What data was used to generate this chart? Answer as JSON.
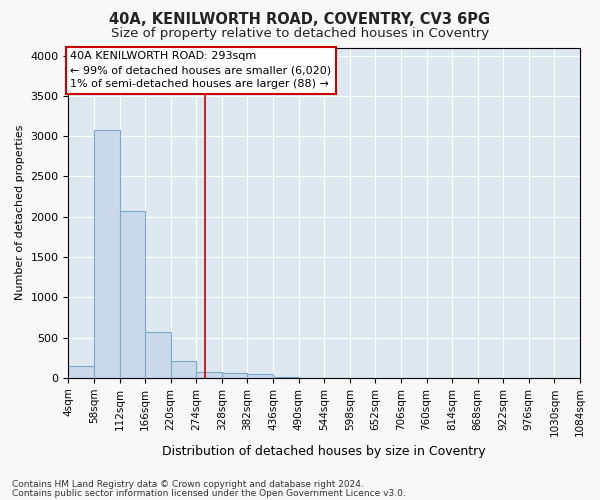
{
  "title1": "40A, KENILWORTH ROAD, COVENTRY, CV3 6PG",
  "title2": "Size of property relative to detached houses in Coventry",
  "xlabel": "Distribution of detached houses by size in Coventry",
  "ylabel": "Number of detached properties",
  "bar_values": [
    150,
    3070,
    2070,
    570,
    205,
    70,
    55,
    45,
    10,
    0,
    0,
    0,
    0,
    0,
    0,
    0,
    0,
    0,
    0,
    0
  ],
  "bin_edges": [
    4,
    58,
    112,
    166,
    220,
    274,
    328,
    382,
    436,
    490,
    544,
    598,
    652,
    706,
    760,
    814,
    868,
    922,
    976,
    1030,
    1084
  ],
  "bar_color": "#c9d9ea",
  "bar_edgecolor": "#7aaac8",
  "red_line_x": 293,
  "annotation_line1": "40A KENILWORTH ROAD: 293sqm",
  "annotation_line2": "← 99% of detached houses are smaller (6,020)",
  "annotation_line3": "1% of semi-detached houses are larger (88) →",
  "annotation_box_facecolor": "#ffffff",
  "annotation_box_edgecolor": "#cc0000",
  "ylim": [
    0,
    4100
  ],
  "yticks": [
    0,
    500,
    1000,
    1500,
    2000,
    2500,
    3000,
    3500,
    4000
  ],
  "footnote1": "Contains HM Land Registry data © Crown copyright and database right 2024.",
  "footnote2": "Contains public sector information licensed under the Open Government Licence v3.0.",
  "fig_facecolor": "#f8f8f8",
  "ax_facecolor": "#dde8f0",
  "grid_color": "#ffffff",
  "title1_fontsize": 10.5,
  "title2_fontsize": 9.5,
  "ylabel_fontsize": 8,
  "xlabel_fontsize": 9,
  "tick_fontsize": 8,
  "xtick_fontsize": 7.5,
  "annot_fontsize": 8,
  "footnote_fontsize": 6.5
}
